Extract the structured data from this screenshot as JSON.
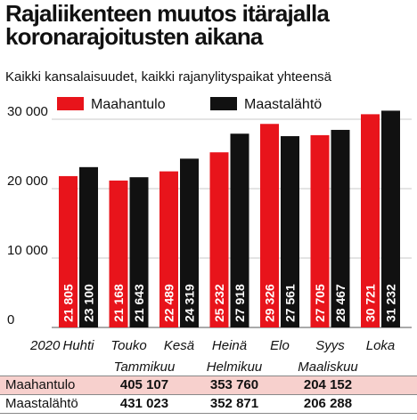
{
  "title": "Rajaliikenteen muutos itärajalla koronarajoitusten aikana",
  "subtitle": "Kaikki kansalaisuudet, kaikki rajanylityspaikat yhteensä",
  "chart_data": {
    "type": "bar",
    "year_label": "2020",
    "categories": [
      "Huhti",
      "Touko",
      "Kesä",
      "Heinä",
      "Elo",
      "Syys",
      "Loka"
    ],
    "series": [
      {
        "name": "Maahantulo",
        "color": "#e8141b",
        "values": [
          21805,
          21168,
          22489,
          25232,
          29326,
          27705,
          30721
        ],
        "labels": [
          "21 805",
          "21 168",
          "22 489",
          "25 232",
          "29 326",
          "27 705",
          "30 721"
        ]
      },
      {
        "name": "Maastalähtö",
        "color": "#111111",
        "values": [
          23100,
          21643,
          24319,
          27918,
          27561,
          28467,
          31232
        ],
        "labels": [
          "23 100",
          "21 643",
          "24 319",
          "27 918",
          "27 561",
          "28 467",
          "31 232"
        ]
      }
    ],
    "ylim": [
      0,
      32000
    ],
    "yticks": [
      0,
      10000,
      20000,
      30000
    ],
    "ytick_labels": [
      "0",
      "10 000",
      "20 000",
      "30 000"
    ],
    "grid": true,
    "legend": "top"
  },
  "table": {
    "months": [
      "Tammikuu",
      "Helmikuu",
      "Maaliskuu"
    ],
    "rows": [
      {
        "label": "Maahantulo",
        "values": [
          "405 107",
          "353 760",
          "204 152"
        ]
      },
      {
        "label": "Maastalähtö",
        "values": [
          "431 023",
          "352 871",
          "206 288"
        ]
      }
    ]
  }
}
